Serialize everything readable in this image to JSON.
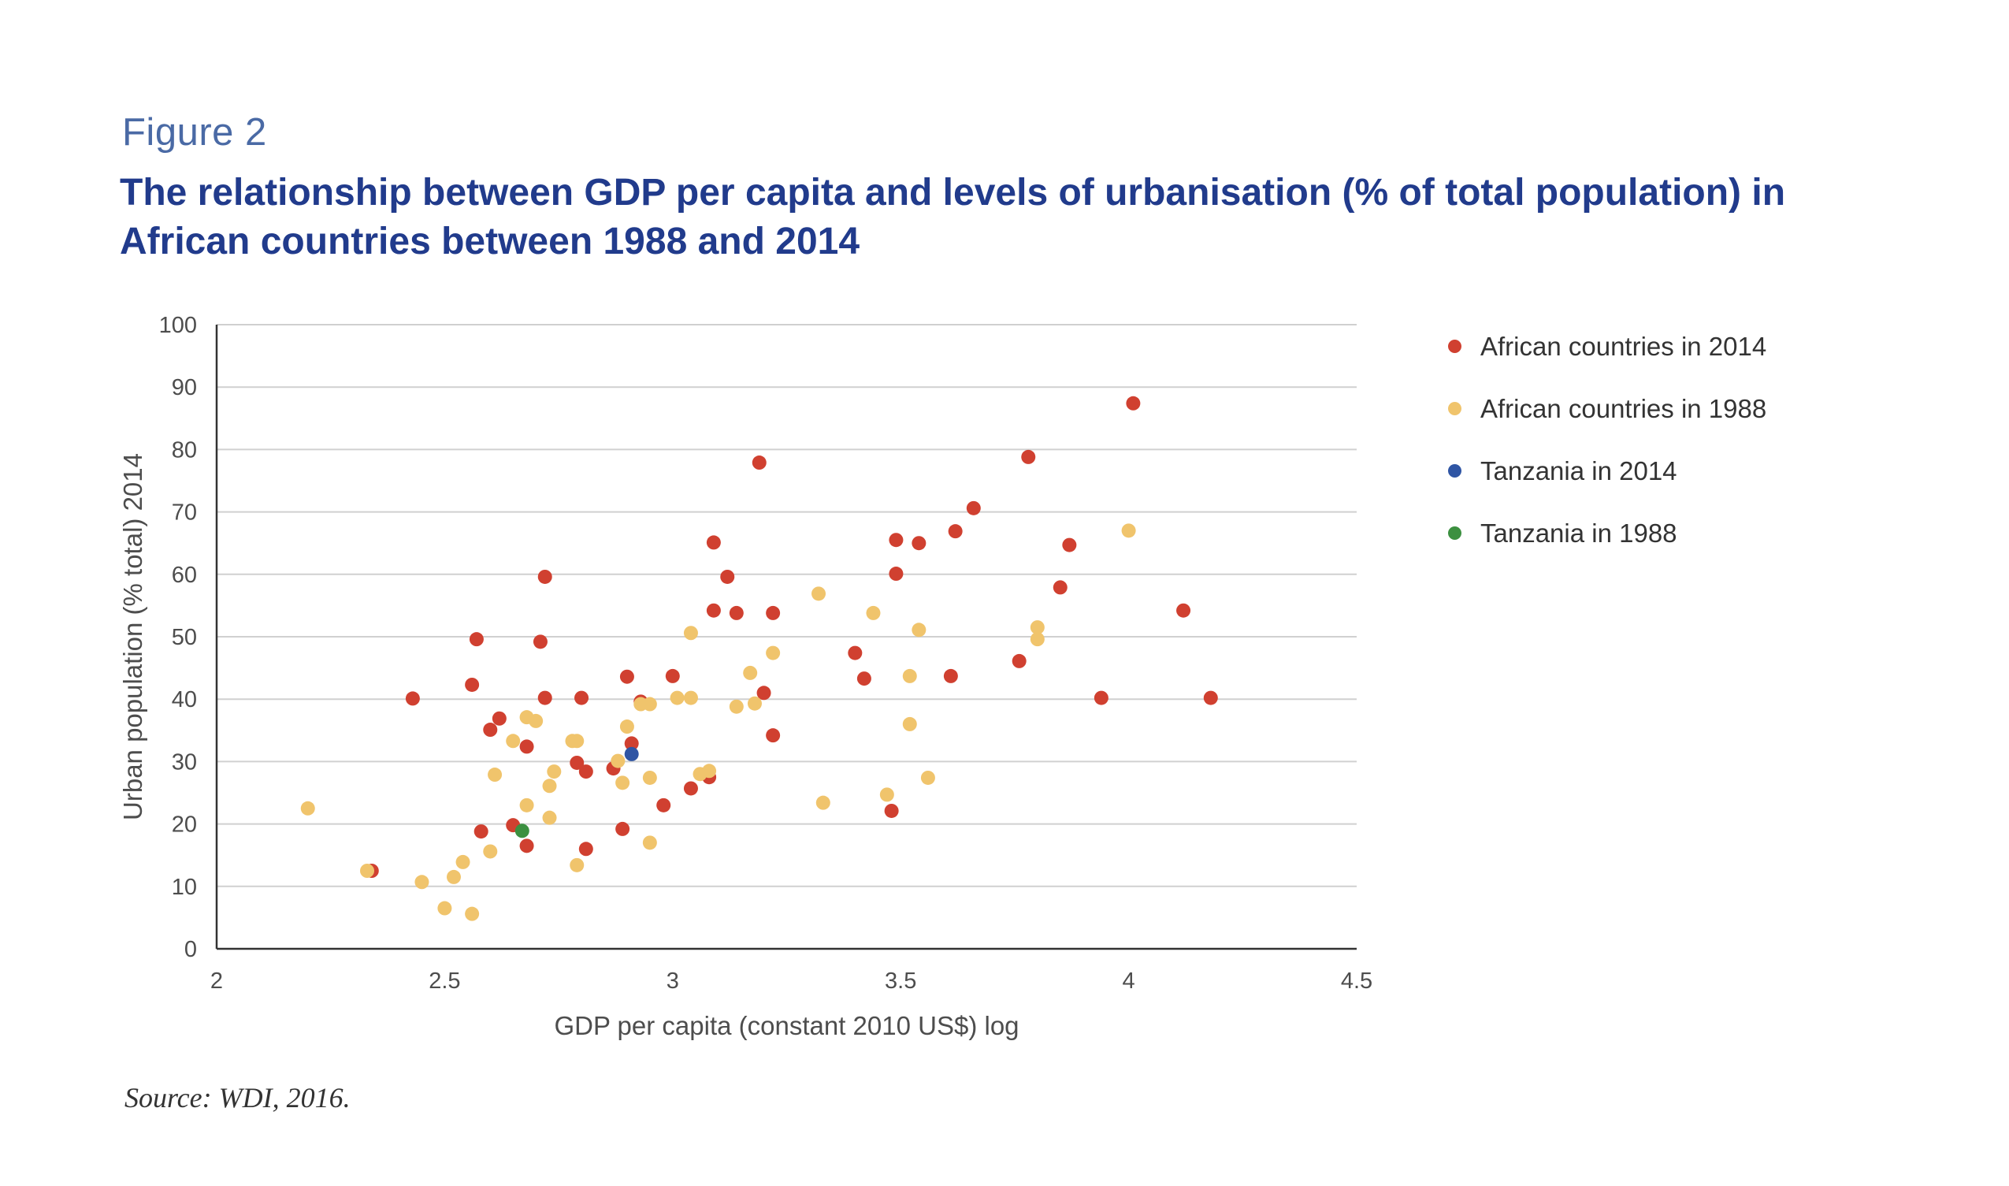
{
  "figure": {
    "label": "Figure 2",
    "title": "The relationship between GDP per capita and levels of urbanisation (% of total population) in African countries between 1988 and 2014",
    "source": "Source: WDI, 2016."
  },
  "chart_data": {
    "type": "scatter",
    "xlabel": "GDP per capita (constant 2010 US$) log",
    "ylabel": "Urban population (% total) 2014",
    "xlim": [
      2,
      4.5
    ],
    "ylim": [
      0,
      100
    ],
    "x_ticks": [
      "2",
      "2.5",
      "3",
      "3.5",
      "4",
      "4.5"
    ],
    "y_ticks": [
      "0",
      "10",
      "20",
      "30",
      "40",
      "50",
      "60",
      "70",
      "80",
      "90",
      "100"
    ],
    "grid": "horizontal",
    "legend_position": "right",
    "series": [
      {
        "name": "African countries in 2014",
        "color": "#d04030",
        "points": [
          [
            2.34,
            12.5
          ],
          [
            2.43,
            40.1
          ],
          [
            2.56,
            42.3
          ],
          [
            2.57,
            49.6
          ],
          [
            2.58,
            18.8
          ],
          [
            2.6,
            35.1
          ],
          [
            2.62,
            36.9
          ],
          [
            2.65,
            19.8
          ],
          [
            2.68,
            32.4
          ],
          [
            2.68,
            16.5
          ],
          [
            2.71,
            49.2
          ],
          [
            2.72,
            59.6
          ],
          [
            2.72,
            40.2
          ],
          [
            2.79,
            29.8
          ],
          [
            2.8,
            40.2
          ],
          [
            2.81,
            28.4
          ],
          [
            2.81,
            16.0
          ],
          [
            2.87,
            28.9
          ],
          [
            2.89,
            19.2
          ],
          [
            2.9,
            43.6
          ],
          [
            2.91,
            32.9
          ],
          [
            2.93,
            39.6
          ],
          [
            2.98,
            23.0
          ],
          [
            3.0,
            43.7
          ],
          [
            3.04,
            25.7
          ],
          [
            3.08,
            27.5
          ],
          [
            3.09,
            65.1
          ],
          [
            3.09,
            54.2
          ],
          [
            3.12,
            59.6
          ],
          [
            3.14,
            53.8
          ],
          [
            3.19,
            77.9
          ],
          [
            3.2,
            41.0
          ],
          [
            3.22,
            53.8
          ],
          [
            3.22,
            34.2
          ],
          [
            3.4,
            47.4
          ],
          [
            3.42,
            43.3
          ],
          [
            3.48,
            22.1
          ],
          [
            3.49,
            65.5
          ],
          [
            3.49,
            60.1
          ],
          [
            3.54,
            65.0
          ],
          [
            3.61,
            43.7
          ],
          [
            3.62,
            66.9
          ],
          [
            3.66,
            70.6
          ],
          [
            3.76,
            46.1
          ],
          [
            3.78,
            78.8
          ],
          [
            3.85,
            57.9
          ],
          [
            3.87,
            64.7
          ],
          [
            3.94,
            40.2
          ],
          [
            4.01,
            87.4
          ],
          [
            4.12,
            54.2
          ],
          [
            4.18,
            40.2
          ]
        ]
      },
      {
        "name": "African countries in 1988",
        "color": "#f0c46c",
        "points": [
          [
            2.2,
            22.5
          ],
          [
            2.33,
            12.5
          ],
          [
            2.45,
            10.7
          ],
          [
            2.5,
            6.5
          ],
          [
            2.52,
            11.5
          ],
          [
            2.54,
            13.9
          ],
          [
            2.56,
            5.6
          ],
          [
            2.6,
            15.6
          ],
          [
            2.61,
            27.9
          ],
          [
            2.65,
            33.3
          ],
          [
            2.68,
            37.1
          ],
          [
            2.68,
            23.0
          ],
          [
            2.7,
            36.5
          ],
          [
            2.73,
            26.1
          ],
          [
            2.73,
            21.0
          ],
          [
            2.74,
            28.4
          ],
          [
            2.78,
            33.3
          ],
          [
            2.79,
            33.3
          ],
          [
            2.79,
            13.4
          ],
          [
            2.88,
            30.1
          ],
          [
            2.89,
            26.6
          ],
          [
            2.9,
            35.6
          ],
          [
            2.93,
            39.2
          ],
          [
            2.95,
            39.2
          ],
          [
            2.95,
            27.4
          ],
          [
            2.95,
            17.0
          ],
          [
            3.01,
            40.2
          ],
          [
            3.04,
            40.2
          ],
          [
            3.04,
            50.6
          ],
          [
            3.06,
            28.0
          ],
          [
            3.08,
            28.5
          ],
          [
            3.14,
            38.8
          ],
          [
            3.17,
            44.2
          ],
          [
            3.18,
            39.3
          ],
          [
            3.22,
            47.4
          ],
          [
            3.32,
            56.9
          ],
          [
            3.33,
            23.4
          ],
          [
            3.44,
            53.8
          ],
          [
            3.47,
            24.7
          ],
          [
            3.52,
            43.7
          ],
          [
            3.52,
            36.0
          ],
          [
            3.54,
            51.1
          ],
          [
            3.56,
            27.4
          ],
          [
            3.8,
            49.6
          ],
          [
            3.8,
            51.5
          ],
          [
            4.0,
            67.0
          ]
        ]
      },
      {
        "name": "Tanzania in 2014",
        "color": "#2f55a4",
        "points": [
          [
            2.91,
            31.2
          ]
        ]
      },
      {
        "name": "Tanzania in 1988",
        "color": "#3c9040",
        "points": [
          [
            2.67,
            18.9
          ]
        ]
      }
    ]
  }
}
